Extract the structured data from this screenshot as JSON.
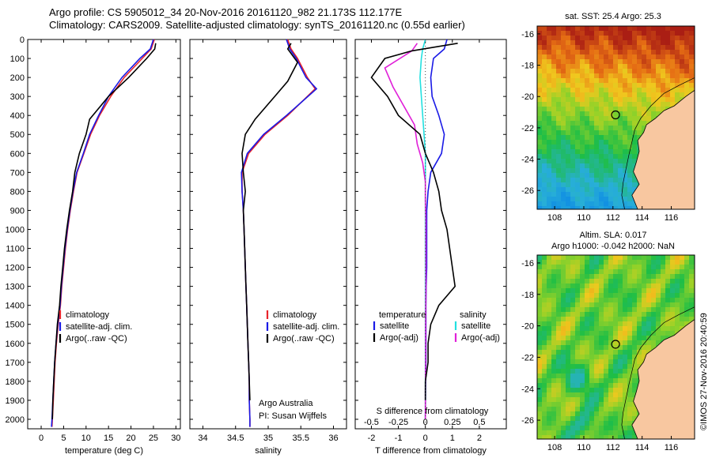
{
  "title_line1": "Argo profile: CS 5905012_34 20-Nov-2016 20161120_982 21.173S 112.177E",
  "title_line2": "Climatology: CARS2009. Satellite-adjusted climatology: synTS_20161120.nc (0.55d earlier)",
  "credit": "©IMOS 27-Nov-2016 20:40:59",
  "colors": {
    "climatology": "#e8242b",
    "satellite": "#1a1ae6",
    "argo": "#000000",
    "s_satellite": "#22e0e0",
    "s_argo": "#e020d8",
    "land": "#f8c7a0"
  },
  "chart_data": [
    {
      "type": "line",
      "name": "temperature-profile",
      "xlabel": "temperature (deg C)",
      "xlim": [
        -3,
        31
      ],
      "ylim": [
        2050,
        0
      ],
      "xticks": [
        0,
        5,
        10,
        15,
        20,
        25,
        30
      ],
      "yticks": [
        0,
        100,
        200,
        300,
        400,
        500,
        600,
        700,
        800,
        900,
        1000,
        1100,
        1200,
        1300,
        1400,
        1500,
        1600,
        1700,
        1800,
        1900,
        2000
      ],
      "legend": [
        "climatology",
        "satellite-adj. clim.",
        "Argo(..raw -QC)"
      ],
      "series": [
        {
          "name": "climatology",
          "x": [
            25.2,
            24.5,
            22.5,
            18.5,
            15.5,
            13.0,
            11.0,
            9.5,
            8.0,
            7.2,
            6.5,
            5.9,
            5.4,
            5.0,
            4.6,
            4.3,
            3.8,
            3.4,
            3.1,
            2.9,
            2.7,
            2.5,
            2.4
          ],
          "y": [
            0,
            50,
            100,
            200,
            300,
            400,
            500,
            600,
            700,
            800,
            900,
            1000,
            1100,
            1200,
            1300,
            1400,
            1500,
            1600,
            1700,
            1800,
            1900,
            2000,
            2040
          ]
        },
        {
          "name": "satellite-adj. clim.",
          "x": [
            25.0,
            24.3,
            22.0,
            18.0,
            15.0,
            12.8,
            10.8,
            9.4,
            7.9,
            7.1,
            6.4,
            5.8,
            5.3,
            4.9,
            4.5,
            4.2,
            3.7,
            3.3,
            3.0,
            2.8,
            2.6,
            2.4,
            2.3
          ],
          "y": [
            0,
            50,
            100,
            200,
            300,
            400,
            500,
            600,
            700,
            800,
            900,
            1000,
            1100,
            1200,
            1300,
            1400,
            1500,
            1600,
            1700,
            1800,
            1900,
            2000,
            2040
          ]
        },
        {
          "name": "Argo(..raw -QC)",
          "x": [
            25.5,
            25.3,
            23.5,
            19.5,
            15.0,
            10.8,
            10.0,
            8.5,
            7.5,
            7.0,
            6.3,
            5.7,
            5.2,
            4.8,
            4.4,
            4.1,
            3.6,
            3.3,
            3.0,
            2.8,
            2.6,
            2.5
          ],
          "y": [
            20,
            50,
            100,
            200,
            300,
            420,
            500,
            600,
            700,
            800,
            900,
            1000,
            1100,
            1200,
            1300,
            1400,
            1500,
            1600,
            1700,
            1800,
            1900,
            2000
          ]
        }
      ]
    },
    {
      "type": "line",
      "name": "salinity-profile",
      "xlabel": "salinity",
      "xlim": [
        33.8,
        36.2
      ],
      "ylim": [
        2050,
        0
      ],
      "xticks": [
        34,
        34.5,
        35,
        35.5,
        36
      ],
      "legend": [
        "climatology",
        "satellite-adj. clim.",
        "Argo(..raw -QC)"
      ],
      "annotation": [
        "Argo Australia",
        "PI: Susan Wijffels"
      ],
      "series": [
        {
          "name": "climatology",
          "x": [
            35.3,
            35.35,
            35.45,
            35.6,
            35.72,
            35.3,
            34.95,
            34.7,
            34.6,
            34.6,
            34.62,
            34.63,
            34.64,
            34.65,
            34.66,
            34.67,
            34.68,
            34.69,
            34.7,
            34.71,
            34.71,
            34.72,
            34.72
          ],
          "y": [
            0,
            50,
            100,
            200,
            260,
            400,
            500,
            600,
            700,
            800,
            900,
            1000,
            1100,
            1200,
            1300,
            1400,
            1500,
            1600,
            1700,
            1800,
            1900,
            2000,
            2040
          ]
        },
        {
          "name": "satellite-adj. clim.",
          "x": [
            35.28,
            35.33,
            35.43,
            35.58,
            35.74,
            35.28,
            34.93,
            34.68,
            34.59,
            34.6,
            34.62,
            34.63,
            34.64,
            34.65,
            34.66,
            34.67,
            34.68,
            34.69,
            34.7,
            34.71,
            34.71,
            34.72,
            34.72
          ],
          "y": [
            0,
            50,
            100,
            200,
            260,
            400,
            500,
            600,
            700,
            800,
            900,
            1000,
            1100,
            1200,
            1300,
            1400,
            1500,
            1600,
            1700,
            1800,
            1900,
            2000,
            2040
          ]
        },
        {
          "name": "Argo(..raw -QC)",
          "x": [
            35.35,
            35.3,
            35.45,
            35.3,
            35.1,
            34.8,
            34.65,
            34.6,
            34.62,
            34.65,
            34.62,
            34.63,
            34.64,
            34.65,
            34.66,
            34.67,
            34.68,
            34.69,
            34.7,
            34.71,
            34.72
          ],
          "y": [
            20,
            50,
            120,
            220,
            300,
            420,
            500,
            600,
            700,
            800,
            900,
            1000,
            1100,
            1200,
            1300,
            1400,
            1500,
            1600,
            1700,
            1800,
            1900
          ]
        }
      ]
    },
    {
      "type": "line",
      "name": "difference-profile",
      "xlabel": "T difference from climatology",
      "xlabel2": "S difference from climatology",
      "xlim": [
        -2.6,
        3.0
      ],
      "ylim": [
        2050,
        0
      ],
      "xticks": [
        -2,
        -1,
        0,
        1,
        2
      ],
      "xticks2": [
        "-0.5",
        "-0.25",
        "0",
        "0.25",
        "0.5"
      ],
      "legend": [
        "temperature",
        "satellite",
        "Argo(-adj)",
        "salinity",
        "satellite",
        "Argo(-adj)"
      ],
      "series": [
        {
          "name": "temperature satellite",
          "x": [
            0.8,
            0.7,
            0.3,
            0.2,
            0.25,
            0.5,
            0.7,
            0.6,
            0.2,
            0.1,
            0.05,
            0.05,
            0.05,
            0.05,
            0.03,
            0.02,
            0.02,
            0.02,
            0.02,
            0.01,
            0.0
          ],
          "y": [
            0,
            50,
            100,
            200,
            300,
            400,
            500,
            600,
            700,
            800,
            900,
            1000,
            1100,
            1200,
            1300,
            1400,
            1500,
            1600,
            1700,
            1800,
            2000
          ]
        },
        {
          "name": "temperature Argo(-adj)",
          "x": [
            1.2,
            -0.5,
            -1.5,
            -2.0,
            -1.4,
            -1.0,
            -0.2,
            0.0,
            0.3,
            0.5,
            0.6,
            0.8,
            0.9,
            1.0,
            1.1,
            0.5,
            0.2,
            0.1,
            0.1,
            0.0,
            0.0
          ],
          "y": [
            20,
            60,
            100,
            200,
            300,
            400,
            500,
            600,
            700,
            800,
            900,
            1000,
            1100,
            1200,
            1300,
            1400,
            1500,
            1600,
            1700,
            1800,
            1900
          ]
        },
        {
          "name": "salinity satellite",
          "x": [
            0.0,
            -0.1,
            -0.15,
            -0.2,
            -0.15,
            -0.1,
            -0.05,
            0.0,
            0.0,
            0.0,
            0.0,
            0.0,
            0.0,
            0.0,
            0.0,
            0.0,
            0.0,
            0.0,
            0.0
          ],
          "y": [
            0,
            50,
            100,
            200,
            300,
            400,
            500,
            600,
            700,
            800,
            900,
            1000,
            1100,
            1200,
            1300,
            1400,
            1500,
            1700,
            2000
          ]
        },
        {
          "name": "salinity Argo(-adj)",
          "x": [
            -0.3,
            -0.5,
            -1.5,
            -1.2,
            -0.8,
            -0.4,
            -0.3,
            -0.1,
            0.0,
            0.0,
            0.02,
            0.02,
            0.02,
            0.01,
            0.01,
            0.0,
            0.0
          ],
          "y": [
            20,
            60,
            150,
            250,
            350,
            450,
            550,
            650,
            750,
            850,
            950,
            1100,
            1300,
            1500,
            1700,
            1850,
            2000
          ]
        }
      ]
    },
    {
      "type": "heatmap",
      "name": "sst-map",
      "title": "sat. SST: 25.4  Argo: 25.3",
      "xticks": [
        108,
        110,
        112,
        114,
        116
      ],
      "yticks": [
        -16,
        -18,
        -20,
        -22,
        -24,
        -26
      ],
      "xlim": [
        106.8,
        117.6
      ],
      "ylim": [
        -27.2,
        -15.5
      ],
      "marker": {
        "lon": 112.177,
        "lat": -21.173
      }
    },
    {
      "type": "heatmap",
      "name": "sla-map",
      "title": "Altim. SLA: 0.017",
      "subtitle": "Argo h1000: -0.042 h2000: NaN",
      "xticks": [
        108,
        110,
        112,
        114,
        116
      ],
      "yticks": [
        -16,
        -18,
        -20,
        -22,
        -24,
        -26
      ],
      "xlim": [
        106.8,
        117.6
      ],
      "ylim": [
        -27.2,
        -15.5
      ],
      "marker": {
        "lon": 112.177,
        "lat": -21.173
      }
    }
  ]
}
